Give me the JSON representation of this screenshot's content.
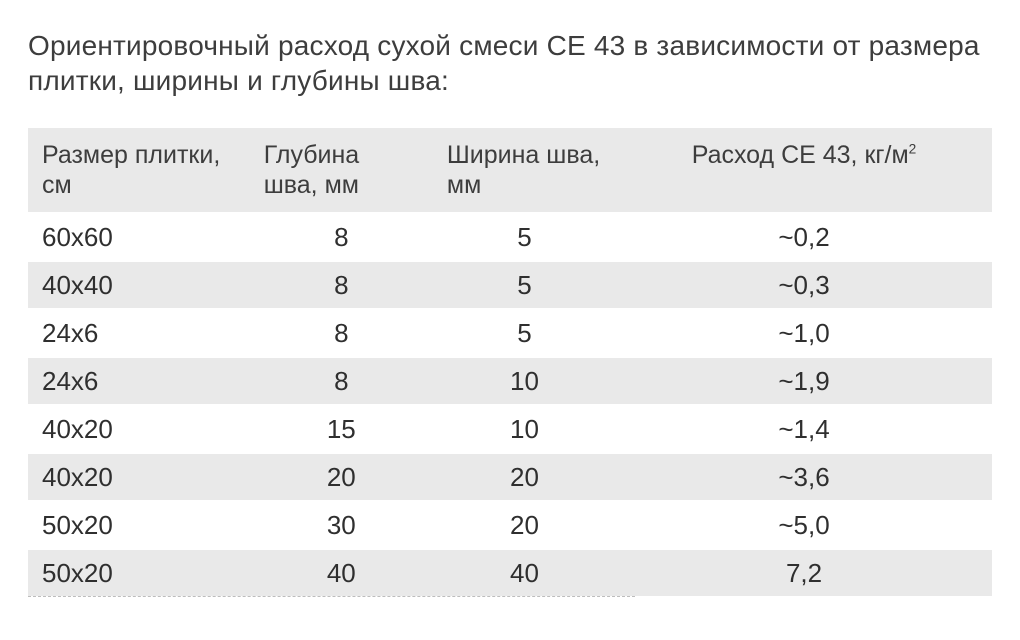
{
  "title": "Ориентировочный расход сухой смеси CE 43 в зависимости от размера плитки, ширины и глубины шва:",
  "table": {
    "background_odd": "#ffffff",
    "background_even": "#e9e9e9",
    "text_color": "#3d3d3d",
    "column_widths": [
      "23%",
      "19%",
      "19%",
      "39%"
    ],
    "column_align": [
      "left",
      "center",
      "center",
      "center"
    ],
    "header_align": [
      "left",
      "left",
      "left",
      "center"
    ],
    "font_size_header": 25,
    "font_size_body": 26,
    "columns": [
      "Размер плитки, см",
      "Глубина шва, мм",
      "Ширина шва, мм",
      "Расход CE 43, кг/м²"
    ],
    "rows": [
      [
        "60x60",
        "8",
        "5",
        "~0,2"
      ],
      [
        "40x40",
        "8",
        "5",
        "~0,3"
      ],
      [
        "24x6",
        "8",
        "5",
        "~1,0"
      ],
      [
        "24x6",
        "8",
        "10",
        "~1,9"
      ],
      [
        "40x20",
        "15",
        "10",
        "~1,4"
      ],
      [
        "40x20",
        "20",
        "20",
        "~3,6"
      ],
      [
        "50x20",
        "30",
        "20",
        "~5,0"
      ],
      [
        "50x20",
        "40",
        "40",
        "7,2"
      ]
    ]
  },
  "dashed_rule_color": "#bdbdbd"
}
